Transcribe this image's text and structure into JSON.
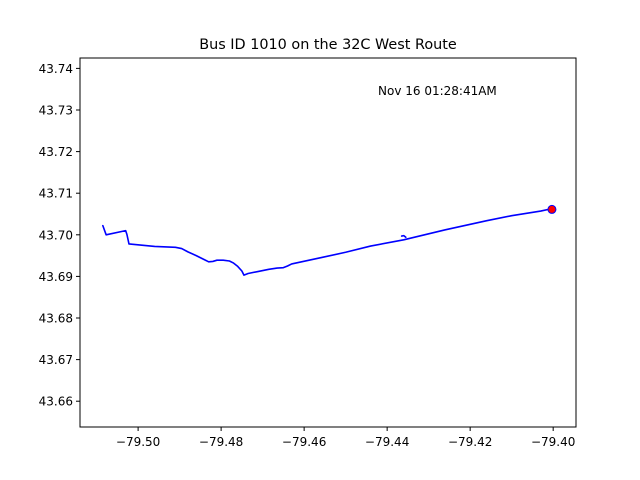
{
  "chart_data": {
    "type": "line",
    "title": "Bus ID 1010 on the 32C West Route",
    "xlabel": "",
    "ylabel": "",
    "xlim": [
      -79.514,
      -79.3945
    ],
    "ylim": [
      43.6538,
      43.7425
    ],
    "x_ticks": [
      {
        "value": -79.5,
        "label": "−79.50"
      },
      {
        "value": -79.48,
        "label": "−79.48"
      },
      {
        "value": -79.46,
        "label": "−79.46"
      },
      {
        "value": -79.44,
        "label": "−79.44"
      },
      {
        "value": -79.42,
        "label": "−79.42"
      },
      {
        "value": -79.4,
        "label": "−79.40"
      }
    ],
    "y_ticks": [
      {
        "value": 43.66,
        "label": "43.66"
      },
      {
        "value": 43.67,
        "label": "43.67"
      },
      {
        "value": 43.68,
        "label": "43.68"
      },
      {
        "value": 43.69,
        "label": "43.69"
      },
      {
        "value": 43.7,
        "label": "43.70"
      },
      {
        "value": 43.71,
        "label": "43.71"
      },
      {
        "value": 43.72,
        "label": "43.72"
      },
      {
        "value": 43.73,
        "label": "43.73"
      },
      {
        "value": 43.74,
        "label": "43.74"
      }
    ],
    "annotation": {
      "text": "Nov 16 01:28:41AM"
    },
    "grid": false,
    "legend": "none",
    "series": [
      {
        "color": "#0000ff",
        "points": [
          [
            -79.5085,
            43.7022
          ],
          [
            -79.5077,
            43.7
          ],
          [
            -79.503,
            43.701
          ],
          [
            -79.5027,
            43.7001
          ],
          [
            -79.5022,
            43.6978
          ],
          [
            -79.496,
            43.6972
          ],
          [
            -79.491,
            43.697
          ],
          [
            -79.4895,
            43.6967
          ],
          [
            -79.488,
            43.6959
          ],
          [
            -79.486,
            43.695
          ],
          [
            -79.484,
            43.694
          ],
          [
            -79.483,
            43.6935
          ],
          [
            -79.482,
            43.6936
          ],
          [
            -79.481,
            43.6939
          ],
          [
            -79.4795,
            43.6939
          ],
          [
            -79.478,
            43.6937
          ],
          [
            -79.477,
            43.6932
          ],
          [
            -79.476,
            43.6924
          ],
          [
            -79.475,
            43.6913
          ],
          [
            -79.4745,
            43.6903
          ],
          [
            -79.4735,
            43.6907
          ],
          [
            -79.471,
            43.6912
          ],
          [
            -79.4685,
            43.6917
          ],
          [
            -79.4665,
            43.692
          ],
          [
            -79.465,
            43.6921
          ],
          [
            -79.464,
            43.6925
          ],
          [
            -79.463,
            43.693
          ],
          [
            -79.456,
            43.6945
          ],
          [
            -79.45,
            43.6958
          ],
          [
            -79.444,
            43.6973
          ],
          [
            -79.436,
            43.6988
          ],
          [
            -79.426,
            43.7012
          ],
          [
            -79.416,
            43.7034
          ],
          [
            -79.41,
            43.7046
          ],
          [
            -79.403,
            43.7057
          ],
          [
            -79.4003,
            43.7063
          ]
        ]
      },
      {
        "color": "#0000ff",
        "points": [
          [
            -79.4365,
            43.6997
          ],
          [
            -79.436,
            43.6998
          ],
          [
            -79.4355,
            43.6994
          ]
        ]
      }
    ],
    "markers": [
      {
        "x": -79.4003,
        "y": 43.7061,
        "color": "#ff0000",
        "edge_color": "#0000ff"
      }
    ]
  }
}
